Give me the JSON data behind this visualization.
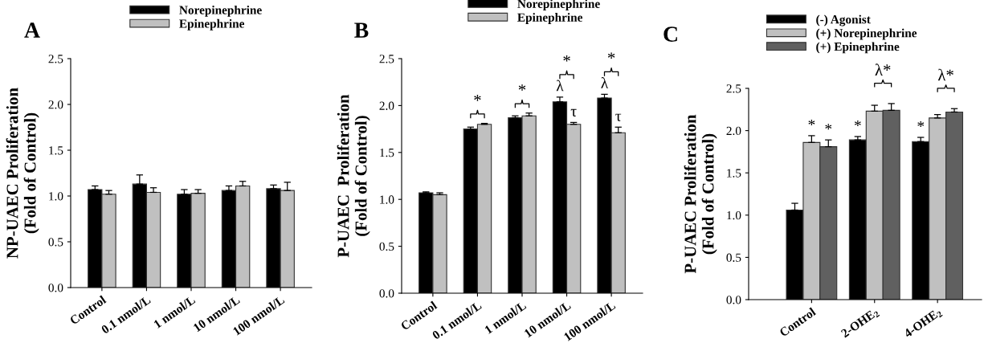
{
  "chart_data": [
    {
      "type": "bar",
      "title": "A",
      "ylabel": "NP-UAEC Proliferation\n(Fold of Control)",
      "categories": [
        "Control",
        "0.1 nmol/L",
        "1 nmol/L",
        "10 nmol/L",
        "100 nmol/L"
      ],
      "ylim": [
        0,
        2.5
      ],
      "yticks": [
        {
          "value": 0,
          "label": "0.0"
        },
        0.5,
        {
          "value": 1,
          "label": "1.0"
        },
        1.5,
        {
          "value": 2,
          "label": "2.0"
        },
        2.5
      ],
      "legend": "top",
      "grid": false,
      "series": [
        {
          "name": "Norepinephrine",
          "color": "#000000",
          "values": [
            1.07,
            1.13,
            1.02,
            1.06,
            1.08
          ],
          "errors": [
            [
              1.07,
              1.11
            ],
            [
              1.13,
              1.23
            ],
            [
              1.02,
              1.07
            ],
            [
              1.06,
              1.11
            ],
            [
              1.08,
              1.12
            ]
          ]
        },
        {
          "name": "Epinephrine",
          "color": "#c0c0c0",
          "values": [
            1.02,
            1.04,
            1.03,
            1.11,
            1.06
          ],
          "errors": [
            [
              1.02,
              1.06
            ],
            [
              1.04,
              1.09
            ],
            [
              1.03,
              1.07
            ],
            [
              1.11,
              1.16
            ],
            [
              1.06,
              1.15
            ]
          ]
        }
      ]
    },
    {
      "type": "bar",
      "title": "B",
      "ylabel": "P-UAEC  Proliferation\n(Fold of Control)",
      "categories": [
        "Control",
        "0.1 nmol/L",
        "1 nmol/L",
        "10 nmol/L",
        "100 nmol/L"
      ],
      "ylim": [
        0,
        2.5
      ],
      "yticks": [
        {
          "value": 0,
          "label": "0.0"
        },
        0.5,
        {
          "value": 1,
          "label": "1.0"
        },
        1.5,
        {
          "value": 2,
          "label": "2.0"
        },
        2.5
      ],
      "legend": "top",
      "grid": false,
      "series": [
        {
          "name": "Norepinephrine",
          "color": "#000000",
          "values": [
            1.07,
            1.75,
            1.87,
            2.04,
            2.08
          ],
          "errors": [
            [
              1.07,
              1.08
            ],
            [
              1.75,
              1.77
            ],
            [
              1.87,
              1.89
            ],
            [
              2.04,
              2.09
            ],
            [
              2.08,
              2.12
            ]
          ],
          "value_labels": [
            null,
            null,
            null,
            "λ",
            "λ"
          ]
        },
        {
          "name": "Epinephrine",
          "color": "#c0c0c0",
          "values": [
            1.05,
            1.8,
            1.89,
            1.8,
            1.71
          ],
          "errors": [
            [
              1.05,
              1.07
            ],
            [
              1.8,
              1.81
            ],
            [
              1.89,
              1.92
            ],
            [
              1.8,
              1.82
            ],
            [
              1.71,
              1.77
            ]
          ],
          "value_labels": [
            null,
            null,
            null,
            "τ",
            "τ"
          ]
        }
      ],
      "annotations": [
        "*",
        "*",
        "*",
        "*"
      ]
    },
    {
      "type": "bar",
      "title": "C",
      "ylabel": "P-UAEC Proliferation\n(Fold of Control)",
      "categories": [
        "Control",
        "2-OHE$_{2}$",
        "4-OHE$_{2}$"
      ],
      "ylim": [
        0,
        2.5
      ],
      "yticks": [
        {
          "value": 0,
          "label": "0.0"
        },
        0.5,
        {
          "value": 1,
          "label": "1.0"
        },
        1.5,
        {
          "value": 2,
          "label": "2.0"
        },
        2.5
      ],
      "legend": "top",
      "grid": false,
      "series": [
        {
          "name": "(-) Agonist",
          "color": "#000000",
          "values": [
            1.06,
            1.89,
            1.87
          ],
          "errors": [
            [
              1.06,
              1.14
            ],
            [
              1.89,
              1.93
            ],
            [
              1.87,
              1.92
            ]
          ],
          "value_labels": [
            null,
            "*",
            "*"
          ]
        },
        {
          "name": "(+) Norepinephrine",
          "color": "#c0c0c0",
          "values": [
            1.86,
            2.23,
            2.15
          ],
          "errors": [
            [
              1.86,
              1.94
            ],
            [
              2.23,
              2.3
            ],
            [
              2.15,
              2.19
            ]
          ],
          "value_labels": [
            "*",
            null,
            null
          ]
        },
        {
          "name": "(+) Epinephrine",
          "color": "#606060",
          "values": [
            1.81,
            2.24,
            2.22
          ],
          "errors": [
            [
              1.81,
              1.89
            ],
            [
              2.24,
              2.32
            ],
            [
              2.22,
              2.26
            ]
          ],
          "value_labels": [
            "*",
            null,
            null
          ]
        }
      ],
      "annotations": [
        "λ*",
        "λ*"
      ]
    }
  ]
}
